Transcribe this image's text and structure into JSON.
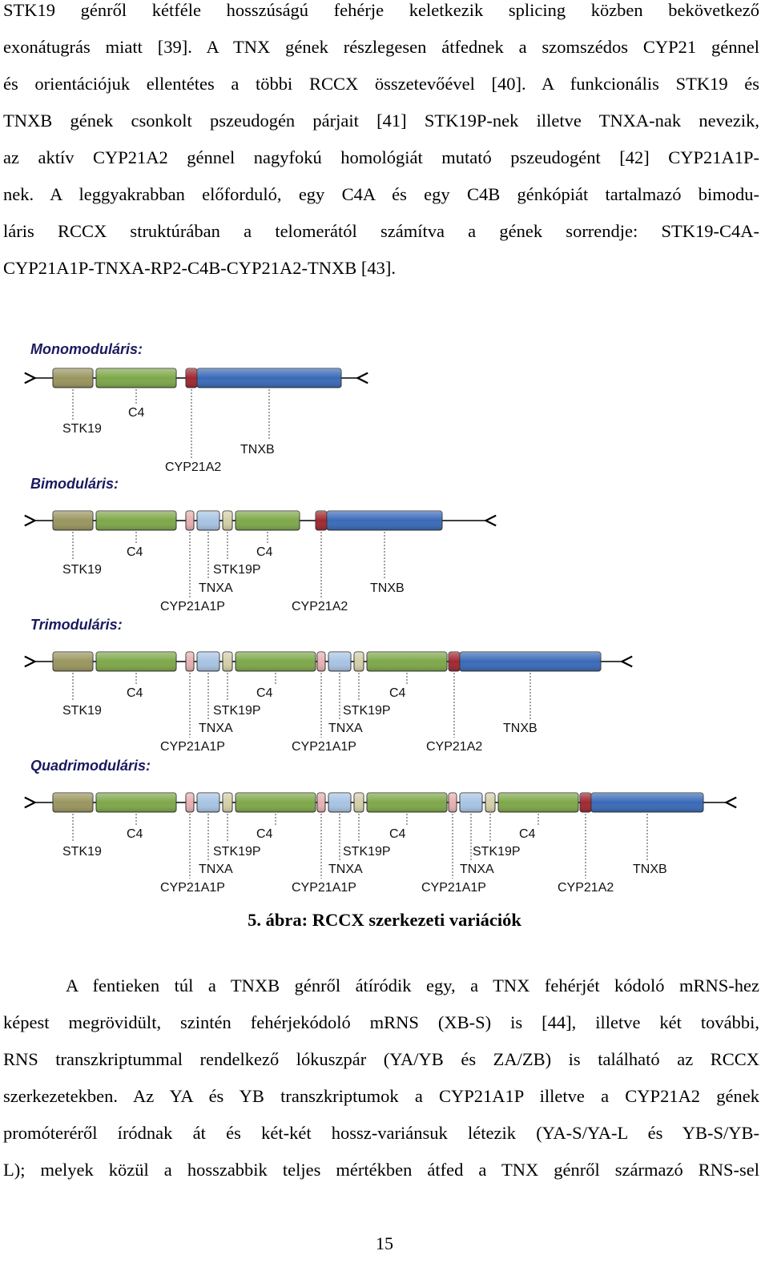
{
  "paragraph1": [
    "STK19 génről kétféle hosszúságú fehérje keletkezik splicing közben bekövetkező",
    "exonátugrás miatt [39]. A TNX gének részlegesen átfednek a szomszédos CYP21 génnel",
    "és orientációjuk ellentétes a többi RCCX összetevőével [40]. A funkcionális STK19 és",
    "TNXB gének csonkolt pszeudogén párjait [41] STK19P-nek illetve TNXA-nak nevezik,",
    "az aktív CYP21A2 génnel nagyfokú homológiát mutató pszeudogént [42] CYP21A1P-",
    "nek. A leggyakrabban előforduló, egy C4A és egy C4B génkópiát tartalmazó bimodu-",
    "láris RCCX struktúrában a telomerától számítva a gének sorrendje: STK19-C4A-",
    "CYP21A1P-TNXA-RP2-C4B-CYP21A2-TNXB [43]."
  ],
  "figure": {
    "panels": [
      {
        "title": "Monomoduláris:",
        "labels": [
          "STK19",
          "C4",
          "CYP21A2",
          "TNXB"
        ]
      },
      {
        "title": "Bimoduláris:",
        "labels": [
          "STK19",
          "C4",
          "CYP21A1P",
          "C4",
          "STK19P",
          "TNXA",
          "CYP21A2",
          "TNXB"
        ]
      },
      {
        "title": "Trimoduláris:",
        "labels": [
          "STK19",
          "C4",
          "CYP21A1P",
          "C4",
          "STK19P",
          "TNXA",
          "CYP21A1P",
          "C4",
          "STK19P",
          "TNXA",
          "CYP21A2",
          "TNXB"
        ]
      },
      {
        "title": "Quadrimoduláris:",
        "labels": [
          "STK19",
          "C4",
          "CYP21A1P",
          "C4",
          "STK19P",
          "TNXA",
          "CYP21A1P",
          "C4",
          "STK19P",
          "TNXA",
          "CYP21A1P",
          "C4",
          "STK19P",
          "TNXA",
          "CYP21A2",
          "TNXB"
        ]
      }
    ],
    "colors": {
      "stk19": "#9a9660",
      "c4": "#7ea84a",
      "cyp_functional": "#a02830",
      "tnxb": "#3a6ab8",
      "cyp_pseudo": "#e8b0b0",
      "tnxa": "#a8c4e4",
      "stk19p": "#d4cfa8"
    }
  },
  "caption": "5. ábra: RCCX szerkezeti variációk",
  "paragraph2": [
    "A fentieken túl a TNXB génről átíródik egy, a TNX fehérjét kódoló mRNS-hez",
    "képest megrövidült, szintén fehérjekódoló mRNS (XB-S) is [44], illetve két további,",
    "RNS transzkriptummal rendelkező lókuszpár (YA/YB és ZA/ZB) is található az RCCX",
    "szerkezetekben. Az YA és YB transzkriptumok a CYP21A1P illetve a CYP21A2 gének",
    "promóteréről íródnak át és két-két hossz-variánsuk létezik (YA-S/YA-L és YB-S/YB-",
    "L); melyek közül a hosszabbik teljes mértékben átfed a TNX génről származó RNS-sel"
  ],
  "page_number": "15"
}
